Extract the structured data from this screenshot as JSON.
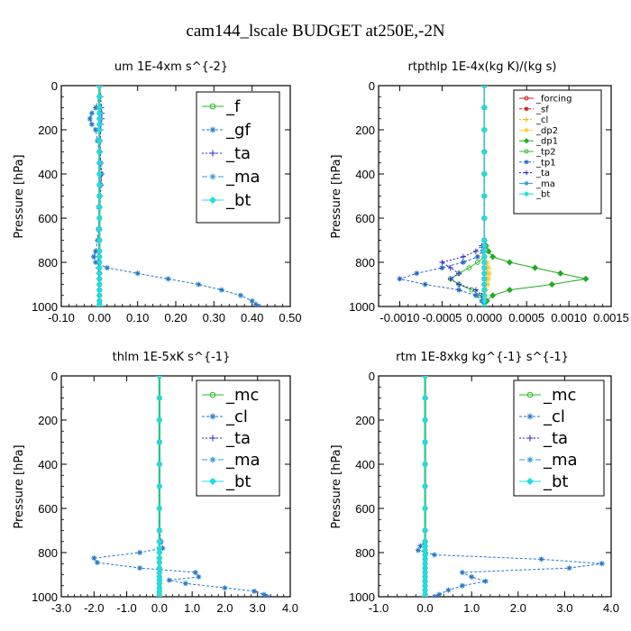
{
  "figure_title": "cam144_lscale  BUDGET at250E,-2N",
  "colors": {
    "f": "#22bb22",
    "gf": "#2277cc",
    "ta": "#2222cc",
    "ma": "#3399dd",
    "bt": "#22dddd",
    "mc": "#22bb22",
    "cl": "#2277cc",
    "forcing": "#cc2222",
    "sf": "#cc1111",
    "cl_small": "#ffaa00",
    "dp2": "#ffcc33",
    "dp1": "#22aa22",
    "tp2": "#33bb33",
    "tp1": "#2266cc"
  },
  "chart_data": [
    {
      "type": "line",
      "title": "um   1E-4xm s^{-2}",
      "ylabel": "Pressure [hPa]",
      "xlim": [
        -0.1,
        0.5
      ],
      "ylim": [
        1000,
        0
      ],
      "xticks": [
        "-0.10",
        "0.00",
        "0.10",
        "0.20",
        "0.30",
        "0.40",
        "0.50"
      ],
      "xtick_values": [
        -0.1,
        0.0,
        0.1,
        0.2,
        0.3,
        0.4,
        0.5
      ],
      "yticks": [
        "0",
        "200",
        "400",
        "600",
        "800",
        "1000"
      ],
      "ytick_values": [
        0,
        200,
        400,
        600,
        800,
        1000
      ],
      "legend": [
        "_f",
        "_gf",
        "_ta",
        "_ma",
        "_bt"
      ],
      "legend_size": "large",
      "pressure": [
        0,
        50,
        100,
        125,
        150,
        175,
        200,
        250,
        300,
        350,
        400,
        450,
        500,
        550,
        600,
        650,
        700,
        750,
        775,
        800,
        825,
        850,
        875,
        900,
        925,
        950,
        975,
        990,
        1000
      ],
      "series": [
        {
          "name": "_f",
          "color_key": "f",
          "values": [
            0.0,
            0.0,
            0.0,
            0.0,
            0.0,
            0.0,
            0.0,
            0.0,
            0.0,
            0.0,
            0.0,
            0.0,
            0.0,
            0.0,
            0.0,
            0.0,
            0.0,
            0.0,
            0.0,
            0.0,
            0.0,
            0.0,
            0.0,
            0.0,
            0.0,
            0.0,
            0.0,
            0.0,
            0.0
          ]
        },
        {
          "name": "_gf",
          "color_key": "gf",
          "values": [
            0.0,
            0.0,
            -0.01,
            -0.02,
            -0.025,
            -0.02,
            -0.01,
            -0.005,
            0.0,
            0.003,
            0.005,
            0.003,
            0.0,
            -0.002,
            0.0,
            -0.003,
            -0.005,
            -0.01,
            -0.015,
            -0.01,
            0.02,
            0.1,
            0.18,
            0.26,
            0.32,
            0.37,
            0.4,
            0.41,
            0.415
          ]
        },
        {
          "name": "_ta",
          "color_key": "ta",
          "values": [
            0.0,
            0.003,
            0.005,
            0.006,
            0.006,
            0.004,
            0.003,
            0.002,
            0.002,
            0.003,
            0.006,
            0.004,
            0.002,
            0.001,
            0.0,
            0.0,
            -0.001,
            -0.002,
            -0.003,
            -0.003,
            -0.003,
            -0.002,
            -0.001,
            0.0,
            0.0,
            0.0,
            0.0,
            0.0,
            0.0
          ]
        },
        {
          "name": "_ma",
          "color_key": "ma",
          "values": [
            0.0,
            0.0,
            0.0,
            0.0,
            0.0,
            0.0,
            0.0,
            0.0,
            0.0,
            0.0,
            0.0,
            0.0,
            0.0,
            0.0,
            0.0,
            0.0,
            0.0,
            0.0,
            0.0,
            0.0,
            0.0,
            0.0,
            0.0,
            0.0,
            0.0,
            0.0,
            0.0,
            0.0,
            0.0
          ]
        },
        {
          "name": "_bt",
          "color_key": "bt",
          "values": [
            0.0,
            0.0,
            0.0,
            0.0,
            0.0,
            0.0,
            0.0,
            0.0,
            0.0,
            0.0,
            0.0,
            0.0,
            0.0,
            0.0,
            0.0,
            0.0,
            0.0,
            0.0,
            0.0,
            0.0,
            0.0,
            0.0,
            0.0,
            0.0,
            0.0,
            0.0,
            0.0,
            0.0,
            0.0
          ]
        }
      ]
    },
    {
      "type": "line",
      "title": "rtpthlp   1E-4x(kg K)/(kg s)",
      "ylabel": "Pressure [hPa]",
      "xlim": [
        -0.00125,
        0.0015
      ],
      "ylim": [
        1000,
        0
      ],
      "xticks": [
        "-0.0010",
        "-0.0005",
        "0.0000",
        "0.0005",
        "0.0010",
        "0.0015"
      ],
      "xtick_values": [
        -0.001,
        -0.0005,
        0.0,
        0.0005,
        0.001,
        0.0015
      ],
      "yticks": [
        "0",
        "200",
        "400",
        "600",
        "800",
        "1000"
      ],
      "ytick_values": [
        0,
        200,
        400,
        600,
        800,
        1000
      ],
      "legend": [
        "_forcing",
        "_sf",
        "_cl",
        "_dp2",
        "_dp1",
        "_tp2",
        "_tp1",
        "_ta",
        "_ma",
        "_bt"
      ],
      "legend_size": "small",
      "pressure": [
        0,
        100,
        200,
        300,
        400,
        500,
        600,
        700,
        725,
        750,
        775,
        800,
        825,
        850,
        875,
        900,
        925,
        950,
        975,
        1000
      ],
      "series": [
        {
          "name": "_forcing",
          "color_key": "forcing",
          "values": [
            0,
            0,
            0,
            0,
            0,
            0,
            0,
            0,
            0,
            0,
            0,
            0,
            0,
            0,
            0,
            0,
            0,
            0,
            0,
            0
          ]
        },
        {
          "name": "_sf",
          "color_key": "sf",
          "values": [
            0,
            0,
            0,
            0,
            0,
            0,
            0,
            0,
            0,
            0,
            0,
            0,
            0,
            0,
            0,
            0,
            0,
            0,
            0,
            0
          ]
        },
        {
          "name": "_cl",
          "color_key": "cl_small",
          "values": [
            0,
            0,
            0,
            0,
            0,
            0,
            0,
            0,
            0,
            0,
            0,
            2e-05,
            3e-05,
            4e-05,
            3e-05,
            2e-05,
            1e-05,
            0,
            0,
            0
          ]
        },
        {
          "name": "_dp2",
          "color_key": "dp2",
          "values": [
            0,
            0,
            0,
            0,
            0,
            0,
            0,
            0,
            0,
            0,
            0,
            3e-05,
            5e-05,
            6e-05,
            5e-05,
            4e-05,
            2e-05,
            1e-05,
            0,
            0
          ]
        },
        {
          "name": "_dp1",
          "color_key": "dp1",
          "values": [
            0,
            0,
            0,
            0,
            0,
            0,
            0,
            0,
            2e-05,
            5e-05,
            0.0001,
            0.0003,
            0.0006,
            0.0009,
            0.0012,
            0.0008,
            0.0003,
            0.0001,
            3e-05,
            0
          ]
        },
        {
          "name": "_tp2",
          "color_key": "tp2",
          "values": [
            0,
            0,
            0,
            0,
            0,
            0,
            0,
            0,
            0,
            0,
            0,
            -8e-05,
            -0.00018,
            -0.0003,
            -0.0004,
            -0.0003,
            -0.00015,
            -5e-05,
            -1e-05,
            0
          ]
        },
        {
          "name": "_tp1",
          "color_key": "tp1",
          "values": [
            0,
            0,
            0,
            0,
            0,
            0,
            0,
            0,
            0,
            -2e-05,
            -8e-05,
            -0.00025,
            -0.0005,
            -0.0008,
            -0.001,
            -0.0007,
            -0.0003,
            -0.0001,
            -3e-05,
            0
          ]
        },
        {
          "name": "_ta",
          "color_key": "ta",
          "values": [
            0,
            0,
            0,
            0,
            0,
            0,
            0,
            0,
            -3e-05,
            -0.0001,
            -0.00025,
            -0.0005,
            -0.0004,
            -0.0003,
            -0.0004,
            -0.0003,
            -0.0001,
            -3e-05,
            0,
            0
          ]
        },
        {
          "name": "_ma",
          "color_key": "ma",
          "values": [
            0,
            0,
            0,
            0,
            0,
            0,
            0,
            0,
            0,
            0,
            0,
            0,
            0,
            0,
            0,
            0,
            0,
            0,
            0,
            0
          ]
        },
        {
          "name": "_bt",
          "color_key": "bt",
          "values": [
            0,
            0,
            0,
            0,
            0,
            0,
            0,
            0,
            0,
            0,
            0,
            0,
            0,
            0,
            0,
            0,
            0,
            0,
            0,
            0
          ]
        }
      ]
    },
    {
      "type": "line",
      "title": "thlm   1E-5xK s^{-1}",
      "ylabel": "Pressure [hPa]",
      "xlim": [
        -3.0,
        4.0
      ],
      "ylim": [
        1000,
        0
      ],
      "xticks": [
        "-3.0",
        "-2.0",
        "-1.0",
        "0.0",
        "1.0",
        "2.0",
        "3.0",
        "4.0"
      ],
      "xtick_values": [
        -3.0,
        -2.0,
        -1.0,
        0.0,
        1.0,
        2.0,
        3.0,
        4.0
      ],
      "yticks": [
        "0",
        "200",
        "400",
        "600",
        "800",
        "1000"
      ],
      "ytick_values": [
        0,
        200,
        400,
        600,
        800,
        1000
      ],
      "legend": [
        "_mc",
        "_cl",
        "_ta",
        "_ma",
        "_bt"
      ],
      "legend_size": "large",
      "pressure": [
        0,
        100,
        200,
        300,
        400,
        500,
        600,
        700,
        750,
        780,
        800,
        825,
        845,
        870,
        890,
        910,
        925,
        940,
        960,
        975,
        990,
        1000
      ],
      "series": [
        {
          "name": "_mc",
          "color_key": "mc",
          "values": [
            0,
            0,
            0,
            0,
            0,
            0,
            0,
            0,
            0,
            0,
            0,
            0,
            0,
            0,
            0,
            0,
            0,
            0,
            0,
            0,
            0,
            0
          ]
        },
        {
          "name": "_cl",
          "color_key": "cl",
          "values": [
            0,
            0,
            0,
            0,
            0,
            0,
            0,
            0,
            0.05,
            0.1,
            -0.6,
            -2.0,
            -1.9,
            -0.6,
            1.1,
            1.2,
            0.3,
            0.8,
            2.0,
            2.9,
            3.2,
            3.3
          ]
        },
        {
          "name": "_ta",
          "color_key": "ta",
          "values": [
            0,
            0,
            0,
            0,
            0,
            0,
            0,
            0,
            0,
            0,
            0,
            0,
            0,
            0,
            0,
            0,
            0,
            0,
            0,
            0,
            0,
            0
          ]
        },
        {
          "name": "_ma",
          "color_key": "ma",
          "values": [
            0,
            0,
            0,
            0,
            0,
            0,
            0,
            0,
            0,
            0,
            0,
            0,
            0,
            0,
            0,
            0,
            0,
            0,
            0,
            0,
            0,
            0
          ]
        },
        {
          "name": "_bt",
          "color_key": "bt",
          "values": [
            0,
            0,
            0,
            0,
            0,
            0,
            0,
            0,
            0,
            0,
            0,
            0,
            0,
            0,
            0,
            0,
            0,
            0,
            0,
            0,
            0,
            0
          ]
        }
      ]
    },
    {
      "type": "line",
      "title": "rtm   1E-8xkg kg^{-1} s^{-1}",
      "ylabel": "Pressure [hPa]",
      "xlim": [
        -1.0,
        4.0
      ],
      "ylim": [
        1000,
        0
      ],
      "xticks": [
        "-1.0",
        "0.0",
        "1.0",
        "2.0",
        "3.0",
        "4.0"
      ],
      "xtick_values": [
        -1.0,
        0.0,
        1.0,
        2.0,
        3.0,
        4.0
      ],
      "yticks": [
        "0",
        "200",
        "400",
        "600",
        "800",
        "1000"
      ],
      "ytick_values": [
        0,
        200,
        400,
        600,
        800,
        1000
      ],
      "legend": [
        "_mc",
        "_cl",
        "_ta",
        "_ma",
        "_bt"
      ],
      "legend_size": "large",
      "pressure": [
        0,
        100,
        200,
        300,
        400,
        500,
        600,
        700,
        750,
        770,
        790,
        810,
        830,
        850,
        870,
        890,
        910,
        930,
        950,
        970,
        990,
        1000
      ],
      "series": [
        {
          "name": "_mc",
          "color_key": "mc",
          "values": [
            0,
            0,
            0,
            0,
            0,
            0,
            0,
            0,
            0,
            0,
            0,
            0,
            0,
            0,
            0,
            0,
            0,
            0,
            0,
            0,
            0,
            0
          ]
        },
        {
          "name": "_cl",
          "color_key": "cl",
          "values": [
            0,
            0,
            0,
            0,
            0,
            0,
            0,
            0,
            0,
            -0.1,
            -0.15,
            0.2,
            2.5,
            3.8,
            3.1,
            0.8,
            1.0,
            1.3,
            0.8,
            0.5,
            0.3,
            0.2
          ]
        },
        {
          "name": "_ta",
          "color_key": "ta",
          "values": [
            0,
            0,
            0,
            0,
            0,
            0,
            0,
            0,
            0,
            0,
            0,
            0,
            0,
            0,
            0,
            0,
            0,
            0,
            0,
            0,
            0,
            0
          ]
        },
        {
          "name": "_ma",
          "color_key": "ma",
          "values": [
            0,
            0,
            0,
            0,
            0,
            0,
            0,
            0,
            0,
            0,
            0,
            0,
            0,
            0,
            0,
            0,
            0,
            0,
            0,
            0,
            0,
            0
          ]
        },
        {
          "name": "_bt",
          "color_key": "bt",
          "values": [
            0,
            0,
            0,
            0,
            0,
            0,
            0,
            0,
            0,
            0,
            0,
            0,
            0,
            0,
            0,
            0,
            0,
            0,
            0,
            0,
            0,
            0
          ]
        }
      ]
    }
  ]
}
